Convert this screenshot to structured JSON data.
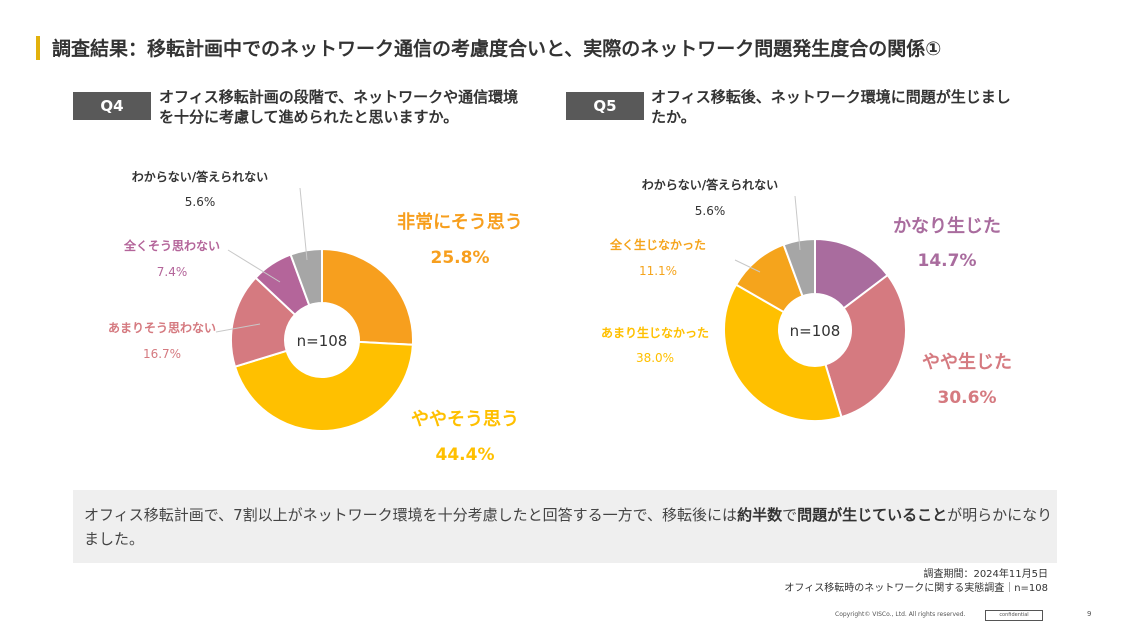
{
  "title": "調査結果：移転計画中でのネットワーク通信の考慮度合いと、実際のネットワーク問題発生度合の関係①",
  "q4": {
    "label": "Q4",
    "text_line1": "オフィス移転計画の段階で、ネットワークや通信環境",
    "text_line2": "を十分に考慮して進められたと思いますか。"
  },
  "q5": {
    "label": "Q5",
    "text_line1": "オフィス移転後、ネットワーク環境に問題が生じまし",
    "text_line2": "たか。"
  },
  "chart_data": [
    {
      "type": "pie",
      "center_label": "n=108",
      "slices": [
        {
          "name": "非常にそう思う",
          "value": 25.8,
          "label": "25.8%",
          "color": "#f79f1e"
        },
        {
          "name": "ややそう思う",
          "value": 44.4,
          "label": "44.4%",
          "color": "#ffc000"
        },
        {
          "name": "あまりそう思わない",
          "value": 16.7,
          "label": "16.7%",
          "color": "#d57a80"
        },
        {
          "name": "全くそう思わない",
          "value": 7.4,
          "label": "7.4%",
          "color": "#b4659a"
        },
        {
          "name": "わからない/答えられない",
          "value": 5.6,
          "label": "5.6%",
          "color": "#a6a6a6"
        }
      ]
    },
    {
      "type": "pie",
      "center_label": "n=108",
      "slices": [
        {
          "name": "かなり生じた",
          "value": 14.7,
          "label": "14.7%",
          "color": "#a96c9e"
        },
        {
          "name": "やや生じた",
          "value": 30.6,
          "label": "30.6%",
          "color": "#d57a80"
        },
        {
          "name": "あまり生じなかった",
          "value": 38.0,
          "label": "38.0%",
          "color": "#ffc000"
        },
        {
          "name": "全く生じなかった",
          "value": 11.1,
          "label": "11.1%",
          "color": "#f5a41c"
        },
        {
          "name": "わからない/答えられない",
          "value": 5.6,
          "label": "5.6%",
          "color": "#a6a6a6"
        }
      ]
    }
  ],
  "summary": {
    "part1": "オフィス移転計画で、7割以上がネットワーク環境を十分考慮したと回答する一方で、移転後には",
    "bold1": "約半数",
    "part2": "で",
    "bold2": "問題が生じていること",
    "part3": "が明らかになりました。"
  },
  "source": {
    "line1": "調査期間：2024年11月5日",
    "line2": "オフィス移転時のネットワークに関する実態調査｜n=108"
  },
  "footer": {
    "copyright": "Copyright© VISCo., Ltd. All rights reserved.",
    "confidential": "confidential",
    "page": "9"
  }
}
